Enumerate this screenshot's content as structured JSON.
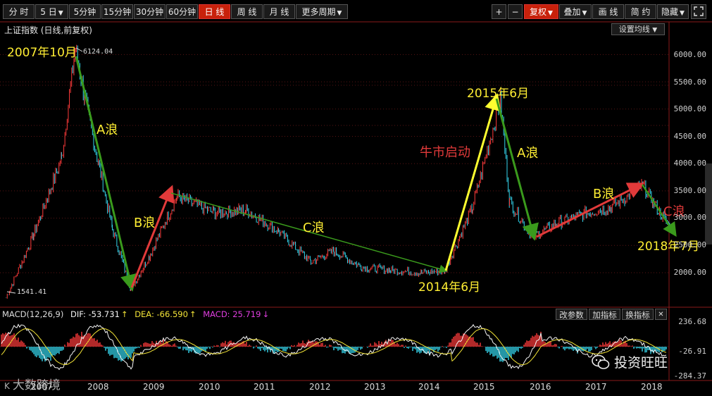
{
  "toolbar": {
    "periods": [
      "分 时",
      "5 日",
      "5分钟",
      "15分钟",
      "30分钟",
      "60分钟",
      "日 线",
      "周 线",
      "月 线",
      "更多周期"
    ],
    "active_period": "日 线",
    "right": [
      "+",
      "−",
      "复权",
      "叠加",
      "画 线",
      "简 约",
      "隐藏"
    ]
  },
  "chart_title": "上证指数 (日线,前复权)",
  "set_ma_label": "设置均线",
  "macd": {
    "label": "MACD(12,26,9)",
    "dif_label": "DIF: -53.731",
    "dea_label": "DEA: -66.590",
    "macd_label": "MACD: 25.719",
    "up_arrow": "↑",
    "down_arrow": "↓",
    "buttons": [
      "改参数",
      "加指标",
      "换指标"
    ],
    "yticks": [
      "236.68",
      "-26.91",
      "-284.37"
    ]
  },
  "watermark_left": "大数跨境",
  "watermark_right": "投资旺旺",
  "colors": {
    "up": "#ff3b3b",
    "down": "#35d6ee",
    "arrow_green": "#3a9a1c",
    "arrow_red": "#e23a3a",
    "arrow_yellow": "#ffff30",
    "text_yellow": "#ffee33",
    "text_red": "#e23a3a",
    "dif": "#f5f5f5",
    "dea": "#f3e437",
    "macd": "#e03ee0"
  },
  "chart_data": {
    "type": "line",
    "title": "上证指数 (日线,前复权)",
    "xlabel": "",
    "ylabel": "",
    "x": [
      "2006-07",
      "2007-01",
      "2007-04",
      "2007-07",
      "2007-10",
      "2007-12",
      "2008-03",
      "2008-06",
      "2008-10",
      "2009-02",
      "2009-08",
      "2010-04",
      "2010-11",
      "2011-06",
      "2012-01",
      "2012-06",
      "2012-12",
      "2013-06",
      "2014-01",
      "2014-06",
      "2014-12",
      "2015-06",
      "2015-08",
      "2016-01",
      "2016-06",
      "2017-01",
      "2017-06",
      "2018-01",
      "2018-03",
      "2018-07"
    ],
    "series": [
      {
        "values": [
          1541,
          2700,
          3400,
          4100,
          6124,
          5200,
          4000,
          2800,
          1700,
          2300,
          3400,
          3100,
          3150,
          2750,
          2200,
          2400,
          2100,
          2050,
          2000,
          2040,
          3200,
          5180,
          3300,
          2650,
          2900,
          3100,
          3200,
          3600,
          3300,
          2800
        ]
      }
    ],
    "ylim": [
      1541,
      6500
    ],
    "yticks": [
      "2000.00",
      "2500.00",
      "3000.00",
      "3500.00",
      "4000.00",
      "4500.00",
      "5000.00",
      "5500.00",
      "6000.00"
    ],
    "year_ticks": [
      "2007",
      "2008",
      "2009",
      "2010",
      "2011",
      "2012",
      "2013",
      "2014",
      "2015",
      "2016",
      "2017",
      "2018"
    ],
    "extremes": {
      "high": "6124.04",
      "low": "1541.41"
    },
    "annotations": [
      "2007年10月",
      "A浪",
      "B浪",
      "C浪",
      "牛市启动",
      "2015年6月",
      "A浪",
      "B浪",
      "C浪",
      "2014年6月",
      "2018年7月"
    ],
    "grid": true,
    "legend": "none"
  }
}
